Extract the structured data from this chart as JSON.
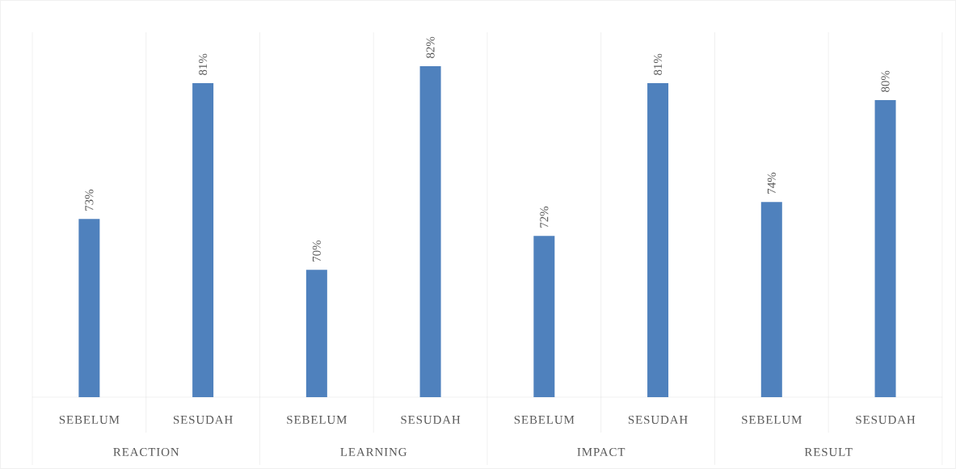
{
  "chart_data": {
    "type": "bar",
    "categories": [
      "SEBELUM",
      "SESUDAH",
      "SEBELUM",
      "SESUDAH",
      "SEBELUM",
      "SESUDAH",
      "SEBELUM",
      "SESUDAH"
    ],
    "values": [
      73,
      81,
      70,
      82,
      72,
      81,
      74,
      80
    ],
    "value_labels": [
      "73%",
      "81%",
      "70%",
      "82%",
      "72%",
      "81%",
      "74%",
      "80%"
    ],
    "color": "#4f81bd",
    "ylim": [
      62.5,
      84
    ],
    "grid": "x",
    "annotations": [
      "REACTION",
      "LEARNING",
      "IMPACT",
      "RESULT"
    ]
  }
}
